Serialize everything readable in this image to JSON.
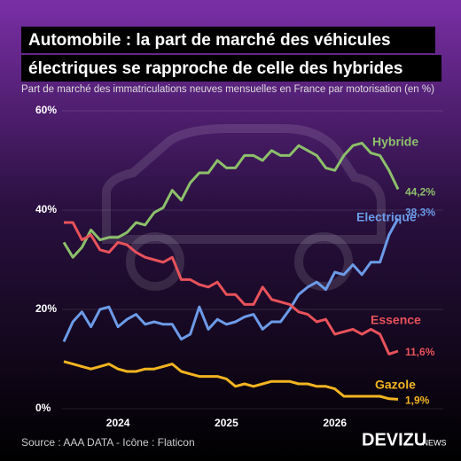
{
  "chart_data": {
    "type": "line",
    "title": [
      "Automobile : la part de marché des véhicules",
      "électriques se rapproche de celle des hybrides"
    ],
    "subtitle": "Part de marché des immatriculations neuves mensuelles en France par motorisation (en %)",
    "source": "Source : AAA DATA - Icône : Flaticon",
    "brand": "DEVIZU",
    "brand_suffix": ".NEWS",
    "categories": [
      null,
      null,
      null,
      null,
      null,
      null,
      "2024",
      null,
      null,
      null,
      null,
      null,
      null,
      null,
      null,
      null,
      null,
      null,
      "2025",
      null,
      null,
      null,
      null,
      null,
      null,
      null,
      null,
      null,
      null,
      null,
      "2026",
      null,
      null,
      null,
      null,
      null,
      null,
      null
    ],
    "ylim": [
      0,
      60
    ],
    "yticks": [
      {
        "value": 0,
        "label": "0%"
      },
      {
        "value": 20,
        "label": "20%"
      },
      {
        "value": 40,
        "label": "40%"
      },
      {
        "value": 60,
        "label": "60%"
      }
    ],
    "grid": true,
    "series": [
      {
        "name": "Hybride",
        "color": "#8cc06a",
        "values": [
          33.5,
          30.5,
          32.5,
          36,
          34,
          34.5,
          34.5,
          35.5,
          37.5,
          37,
          39.5,
          40.5,
          44,
          42,
          45.5,
          47.5,
          47.5,
          50,
          48.5,
          48.5,
          51,
          51,
          50,
          52,
          51,
          51,
          53,
          52,
          51,
          48.5,
          48,
          51,
          53,
          53.5,
          51.5,
          51,
          48,
          44.2
        ],
        "value_labels": [
          null,
          null,
          null,
          null,
          null,
          null,
          null,
          null,
          null,
          null,
          null,
          null,
          null,
          null,
          null,
          null,
          null,
          null,
          null,
          null,
          null,
          null,
          null,
          null,
          null,
          null,
          null,
          null,
          null,
          null,
          null,
          null,
          null,
          null,
          null,
          null,
          null,
          "44,2%"
        ]
      },
      {
        "name": "Electrique",
        "color": "#6c9be8",
        "values": [
          13.5,
          17.5,
          19.5,
          16.5,
          20,
          20.5,
          16.5,
          18,
          19,
          17,
          17.5,
          17,
          17,
          14,
          15,
          20.5,
          16,
          18,
          17,
          17.5,
          18.5,
          19,
          16,
          17.5,
          17.5,
          20,
          23,
          24.5,
          25.5,
          24,
          27.5,
          27,
          29,
          27,
          29.5,
          29.5,
          35,
          38.3
        ],
        "value_labels": [
          null,
          null,
          null,
          null,
          null,
          null,
          null,
          null,
          null,
          null,
          null,
          null,
          null,
          null,
          null,
          null,
          null,
          null,
          null,
          null,
          null,
          null,
          null,
          null,
          null,
          null,
          null,
          null,
          null,
          null,
          null,
          null,
          null,
          null,
          null,
          null,
          null,
          "38,3%"
        ]
      },
      {
        "name": "Essence",
        "color": "#e8525a",
        "values": [
          37.5,
          37.5,
          34,
          35,
          32,
          31.5,
          33.5,
          33,
          31.5,
          30.5,
          30,
          29.5,
          30.5,
          26,
          26,
          25,
          24.5,
          25.5,
          23,
          23,
          21,
          21,
          24.5,
          22,
          21.5,
          21,
          19.5,
          19,
          17.5,
          18,
          15,
          15.5,
          16,
          15,
          16,
          15,
          11,
          11.6
        ],
        "value_labels": [
          null,
          null,
          null,
          null,
          null,
          null,
          null,
          null,
          null,
          null,
          null,
          null,
          null,
          null,
          null,
          null,
          null,
          null,
          null,
          null,
          null,
          null,
          null,
          null,
          null,
          null,
          null,
          null,
          null,
          null,
          null,
          null,
          null,
          null,
          null,
          null,
          null,
          "11,6%"
        ]
      },
      {
        "name": "Gazole",
        "color": "#f2b420",
        "values": [
          9.5,
          9,
          8.5,
          8,
          8.5,
          9,
          8,
          7.5,
          7.5,
          8,
          8,
          8.5,
          9,
          7.5,
          7,
          6.5,
          6.5,
          6.5,
          6,
          4.5,
          5,
          4.5,
          5,
          5.5,
          5.5,
          5.5,
          5,
          5,
          4.5,
          4.5,
          4,
          2.5,
          2.5,
          2.5,
          2.5,
          2.5,
          2,
          1.9
        ],
        "value_labels": [
          null,
          null,
          null,
          null,
          null,
          null,
          null,
          null,
          null,
          null,
          null,
          null,
          null,
          null,
          null,
          null,
          null,
          null,
          null,
          null,
          null,
          null,
          null,
          null,
          null,
          null,
          null,
          null,
          null,
          null,
          null,
          null,
          null,
          null,
          null,
          null,
          null,
          "1,9%"
        ]
      }
    ]
  }
}
